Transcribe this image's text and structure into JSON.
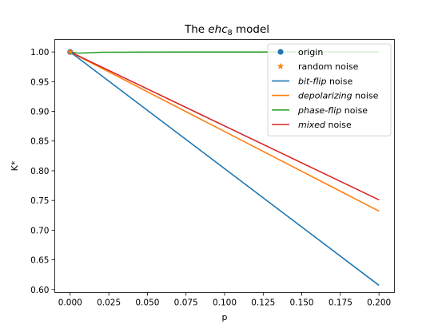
{
  "chart_data": {
    "type": "line",
    "title_prefix": "The ",
    "title_italic": "ehc",
    "title_sub": "8",
    "title_suffix": " model",
    "xlabel": "p",
    "ylabel": "K*",
    "xlim": [
      -0.01,
      0.21
    ],
    "ylim": [
      0.595,
      1.021
    ],
    "xticks": [
      0.0,
      0.025,
      0.05,
      0.075,
      0.1,
      0.125,
      0.15,
      0.175,
      0.2
    ],
    "xtick_labels": [
      "0.000",
      "0.025",
      "0.050",
      "0.075",
      "0.100",
      "0.125",
      "0.150",
      "0.175",
      "0.200"
    ],
    "yticks": [
      0.6,
      0.65,
      0.7,
      0.75,
      0.8,
      0.85,
      0.9,
      0.95,
      1.0
    ],
    "ytick_labels": [
      "0.60",
      "0.65",
      "0.70",
      "0.75",
      "0.80",
      "0.85",
      "0.90",
      "0.95",
      "1.00"
    ],
    "grid": false,
    "legend_position": "top-right",
    "series": [
      {
        "key": "bitflip",
        "italic": "bit-flip",
        "suffix": " noise",
        "color": "#1f77b4",
        "x": [
          0.0,
          0.2
        ],
        "y": [
          1.0,
          0.607
        ]
      },
      {
        "key": "depol",
        "italic": "depolarizing",
        "suffix": " noise",
        "color": "#ff7f0e",
        "x": [
          0.0,
          0.2
        ],
        "y": [
          1.0,
          0.732
        ]
      },
      {
        "key": "phaseflip",
        "italic": "phase-flip",
        "suffix": " noise",
        "color": "#2ca02c",
        "x": [
          0.0,
          0.005,
          0.02,
          0.05,
          0.1,
          0.15,
          0.2
        ],
        "y": [
          1.0,
          0.998,
          0.9995,
          0.9998,
          0.9999,
          0.9999,
          0.9999
        ]
      },
      {
        "key": "mixed",
        "italic": "mixed",
        "suffix": " noise",
        "color": "#d62728",
        "x": [
          0.0,
          0.2
        ],
        "y": [
          1.0,
          0.751
        ]
      }
    ],
    "markers": [
      {
        "key": "origin",
        "label": "origin",
        "shape": "circle",
        "color": "#1f77b4",
        "x": 0.0,
        "y": 1.0
      },
      {
        "key": "random",
        "label": "random noise",
        "shape": "star",
        "color": "#ff7f0e",
        "x": 0.0,
        "y": 1.0
      }
    ]
  }
}
